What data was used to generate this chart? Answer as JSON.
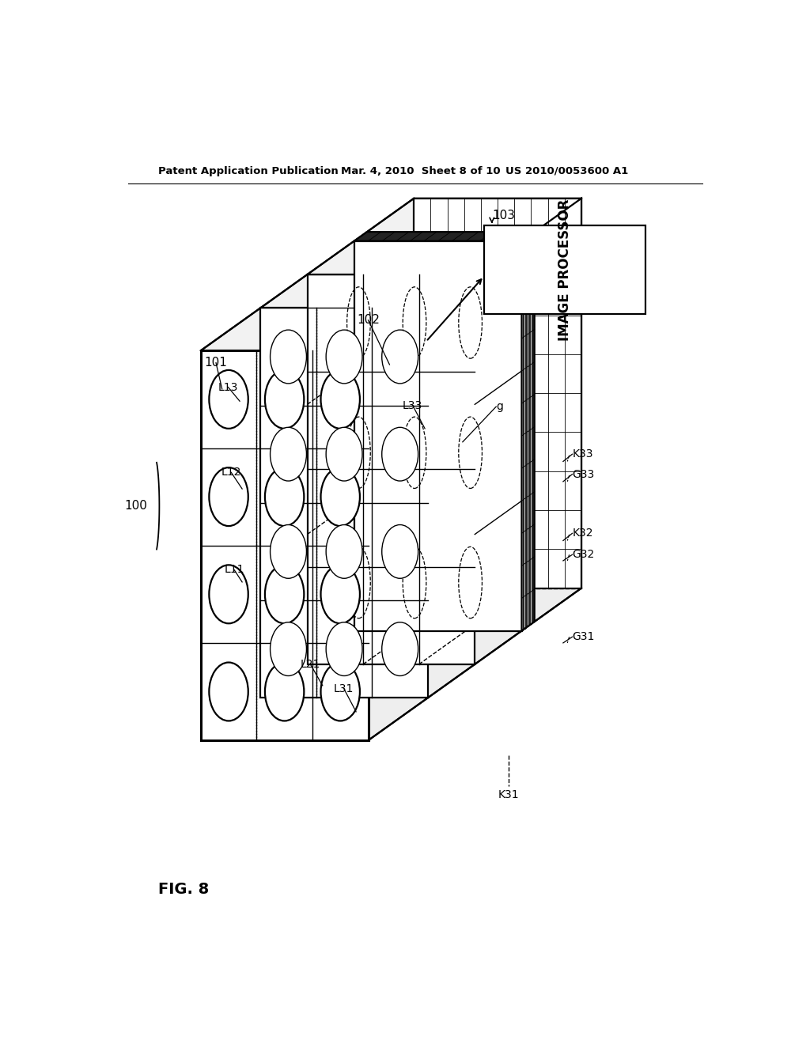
{
  "bg_color": "#ffffff",
  "header_left": "Patent Application Publication",
  "header_mid": "Mar. 4, 2010  Sheet 8 of 10",
  "header_right": "US 2010/0053600 A1",
  "fig_label": "FIG. 8",
  "image_processor_text": "IMAGE PROCESSOR"
}
